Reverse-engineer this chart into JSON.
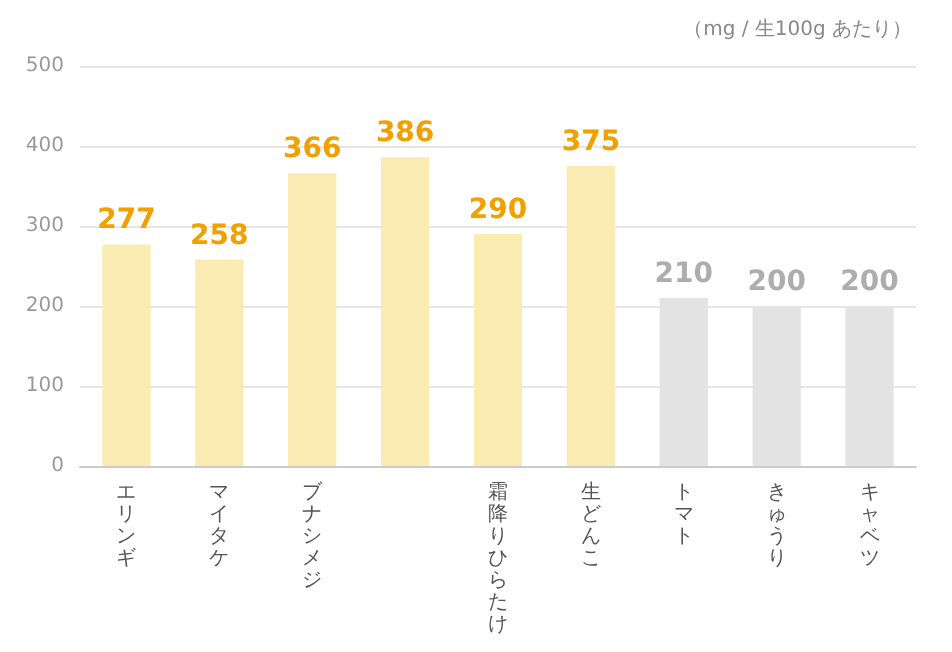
{
  "chart_data": {
    "type": "bar",
    "categories": [
      "エリンギ",
      "マイタケ",
      "ブナシメジ",
      null,
      "霜降りひらたけ",
      "生どんこ",
      "トマト",
      "きゅうり",
      "キャベツ"
    ],
    "values": [
      277,
      258,
      366,
      386,
      290,
      375,
      210,
      200,
      200
    ],
    "colors": [
      "#f9ebb1",
      "#f9ebb1",
      "#f9ebb1",
      "#f9ebb1",
      "#f9ebb1",
      "#f9ebb1",
      "#e3e3e3",
      "#e3e3e3",
      "#e3e3e3"
    ],
    "data_labels": true,
    "ylim": [
      0,
      500
    ],
    "yticks": [
      0,
      100,
      200,
      300,
      400,
      500
    ],
    "grid": "y",
    "annotations": [
      "（mg / 生100g あたり）"
    ]
  }
}
